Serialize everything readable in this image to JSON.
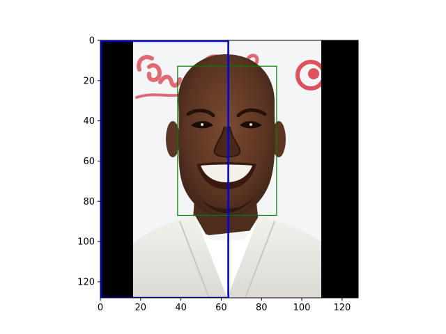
{
  "chart_data": {
    "type": "image",
    "title": "",
    "xlabel": "",
    "ylabel": "",
    "xlim": [
      0,
      128
    ],
    "ylim": [
      128,
      0
    ],
    "x_ticks": [
      0,
      20,
      40,
      60,
      80,
      100,
      120
    ],
    "y_ticks": [
      0,
      20,
      40,
      60,
      80,
      100,
      120
    ],
    "image": {
      "description_free": true,
      "black_bars": [
        {
          "x0": 0,
          "x1": 16,
          "y0": 0,
          "y1": 128
        },
        {
          "x0": 110,
          "x1": 128,
          "y0": 0,
          "y1": 128
        }
      ],
      "photo_region": {
        "x0": 16,
        "x1": 110,
        "y0": 0,
        "y1": 128
      }
    },
    "overlays": [
      {
        "name": "blue-box",
        "color": "#0000ee",
        "x0": 0,
        "y0": 0,
        "x1": 63.5,
        "y1": 128
      },
      {
        "name": "green-box",
        "color": "#008000",
        "x0": 38,
        "y0": 12.5,
        "x1": 87.5,
        "y1": 87
      }
    ]
  },
  "colors": {
    "axis": "#000000",
    "black_bar": "#000000",
    "background_photo": "#f3f5f6",
    "skin": "#5a3422",
    "shirt": "#ecebe6",
    "logo_red": "#e0505d"
  }
}
